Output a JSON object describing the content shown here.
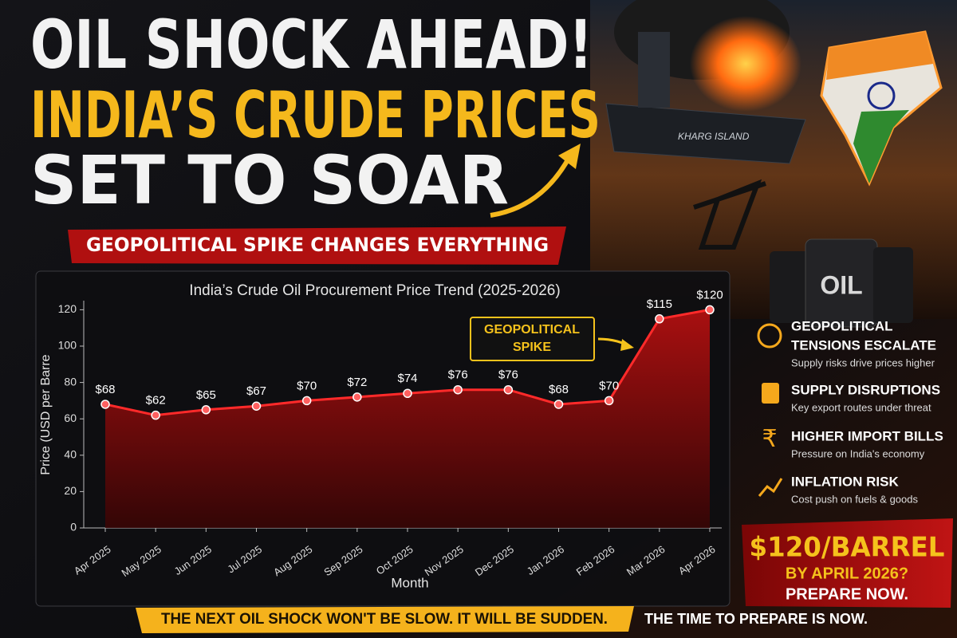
{
  "chart_data": {
    "type": "line",
    "title": "India’s Crude Oil Procurement Price Trend (2025-2026)",
    "x_label": "Month",
    "y_label": "Price (USD per Barre",
    "categories": [
      "Apr 2025",
      "May 2025",
      "Jun 2025",
      "Jul 2025",
      "Aug 2025",
      "Sep 2025",
      "Oct 2025",
      "Nov 2025",
      "Dec 2025",
      "Jan 2026",
      "Feb 2026",
      "Mar 2026",
      "Apr 2026"
    ],
    "values": [
      68,
      62,
      65,
      67,
      70,
      72,
      74,
      76,
      76,
      68,
      70,
      115,
      120
    ],
    "value_labels": [
      "$68",
      "$62",
      "$65",
      "$67",
      "$70",
      "$72",
      "$74",
      "$76",
      "$76",
      "$68",
      "$70",
      "$115",
      "$120"
    ],
    "color": "#ff2a2a",
    "ylim": [
      0,
      125
    ],
    "yticks": [
      0,
      20,
      40,
      60,
      80,
      100,
      120
    ],
    "grid": false,
    "annotation": [
      "GEOPOLITICAL",
      "SPIKE"
    ]
  },
  "poster": {
    "headline": [
      "OIL SHOCK AHEAD!",
      "INDIA’S CRUDE PRICES",
      "SET TO SOAR"
    ],
    "banner": "GEOPOLITICAL SPIKE CHANGES EVERYTHING",
    "scene_labels": [
      "KHARG ISLAND",
      "OIL"
    ],
    "points": [
      {
        "title": [
          "GEOPOLITICAL",
          "TENSIONS ESCALATE"
        ],
        "text": "Supply risks drive prices higher"
      },
      {
        "title": [
          "SUPPLY DISRUPTIONS"
        ],
        "text": "Key export routes under threat"
      },
      {
        "title": [
          "HIGHER IMPORT BILLS"
        ],
        "text": "Pressure on India's economy"
      },
      {
        "title": [
          "INFLATION RISK"
        ],
        "text": "Cost push on fuels & goods"
      }
    ],
    "callout": [
      "$120/BARREL",
      "BY APRIL 2026?",
      "PREPARE NOW."
    ],
    "footer": [
      "THE NEXT OIL SHOCK WON'T BE SLOW. IT WILL BE SUDDEN.",
      "THE TIME TO PREPARE IS NOW."
    ]
  }
}
